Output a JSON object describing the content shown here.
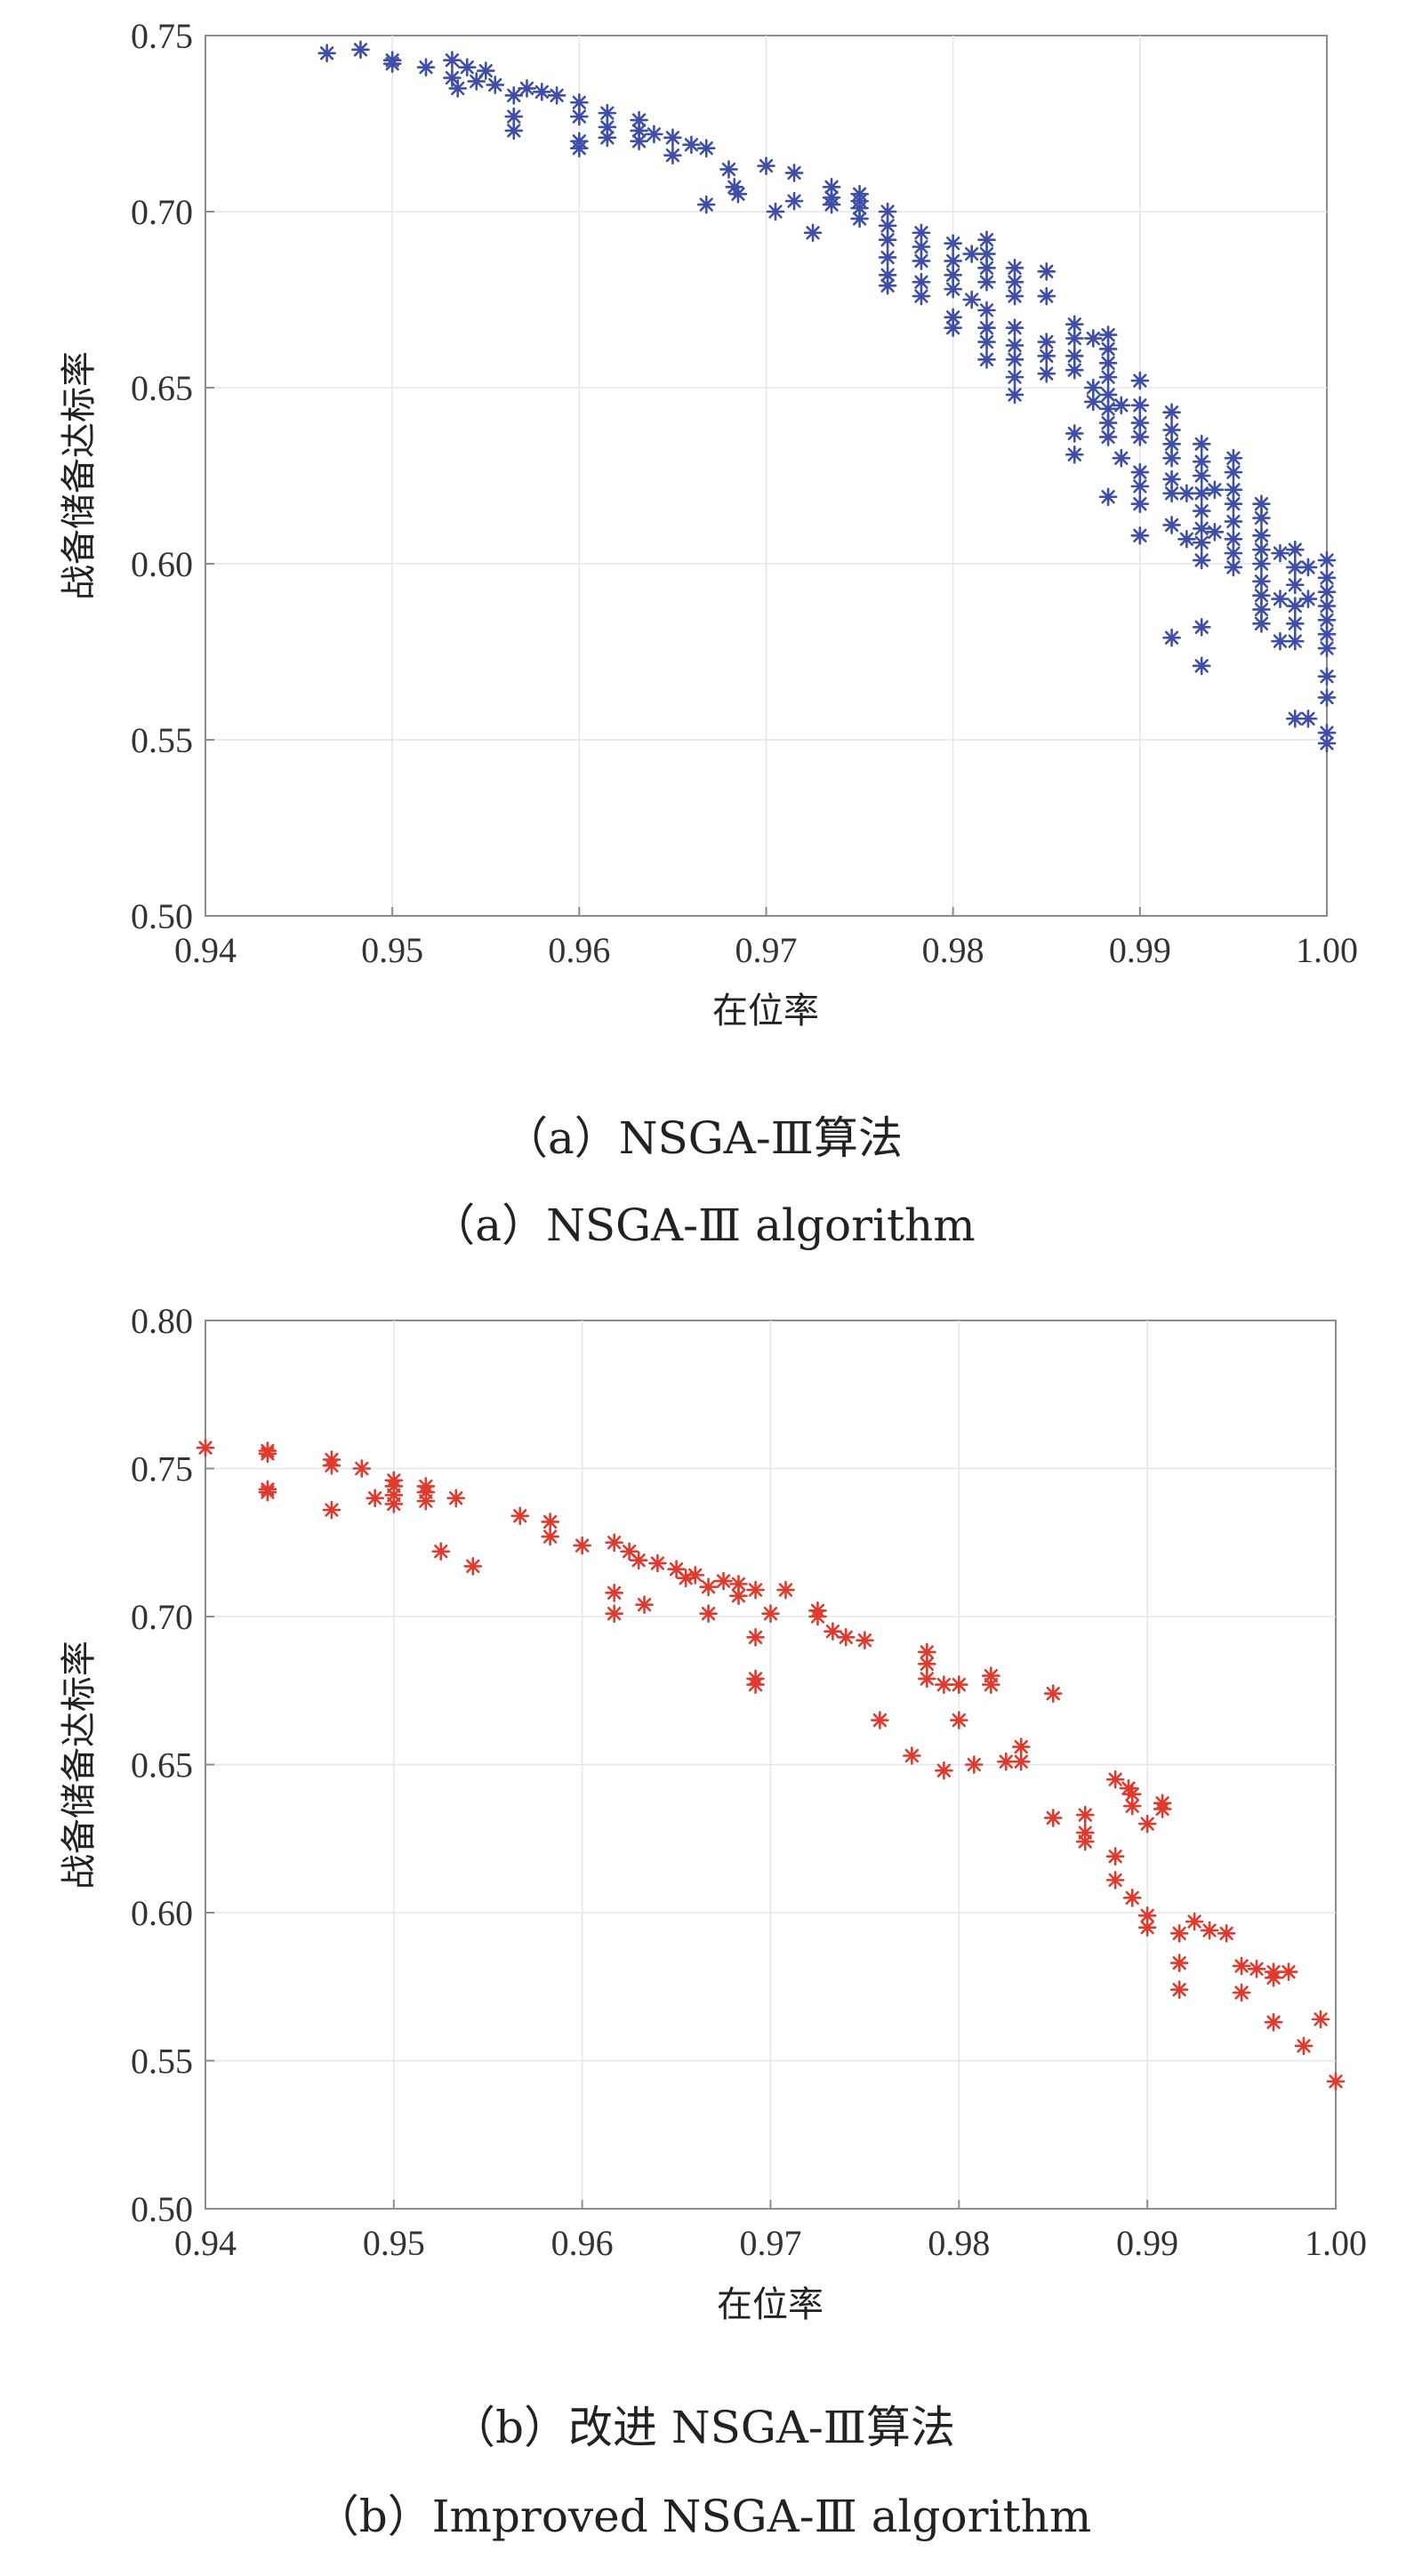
{
  "chart_data": [
    {
      "type": "scatter",
      "marker": "asterisk",
      "color": "#3f4fa8",
      "xlabel": "在位率",
      "ylabel": "战备储备达标率",
      "xlim": [
        0.94,
        1.0
      ],
      "ylim": [
        0.5,
        0.75
      ],
      "xticks": [
        "0.94",
        "0.95",
        "0.96",
        "0.97",
        "0.98",
        "0.99",
        "1.00"
      ],
      "yticks": [
        "0.50",
        "0.55",
        "0.60",
        "0.65",
        "0.70",
        "0.75"
      ],
      "caption_cn": "（a）NSGA-Ⅲ算法",
      "caption_en": "（a）NSGA-Ⅲ algorithm",
      "points": [
        [
          0.9465,
          0.745
        ],
        [
          0.9483,
          0.746
        ],
        [
          0.95,
          0.743
        ],
        [
          0.95,
          0.742
        ],
        [
          0.9518,
          0.741
        ],
        [
          0.9532,
          0.743
        ],
        [
          0.9532,
          0.738
        ],
        [
          0.9535,
          0.735
        ],
        [
          0.954,
          0.741
        ],
        [
          0.9545,
          0.737
        ],
        [
          0.955,
          0.74
        ],
        [
          0.9555,
          0.736
        ],
        [
          0.9565,
          0.733
        ],
        [
          0.9565,
          0.727
        ],
        [
          0.9565,
          0.723
        ],
        [
          0.9572,
          0.735
        ],
        [
          0.958,
          0.734
        ],
        [
          0.9588,
          0.733
        ],
        [
          0.96,
          0.731
        ],
        [
          0.96,
          0.727
        ],
        [
          0.96,
          0.72
        ],
        [
          0.96,
          0.718
        ],
        [
          0.9615,
          0.728
        ],
        [
          0.9615,
          0.724
        ],
        [
          0.9615,
          0.721
        ],
        [
          0.9632,
          0.726
        ],
        [
          0.9632,
          0.723
        ],
        [
          0.9632,
          0.72
        ],
        [
          0.964,
          0.722
        ],
        [
          0.965,
          0.721
        ],
        [
          0.965,
          0.716
        ],
        [
          0.966,
          0.719
        ],
        [
          0.9668,
          0.718
        ],
        [
          0.9668,
          0.702
        ],
        [
          0.968,
          0.712
        ],
        [
          0.9683,
          0.707
        ],
        [
          0.9685,
          0.705
        ],
        [
          0.97,
          0.713
        ],
        [
          0.9705,
          0.7
        ],
        [
          0.9715,
          0.711
        ],
        [
          0.9715,
          0.703
        ],
        [
          0.9725,
          0.694
        ],
        [
          0.9735,
          0.707
        ],
        [
          0.9735,
          0.704
        ],
        [
          0.9735,
          0.702
        ],
        [
          0.975,
          0.705
        ],
        [
          0.975,
          0.703
        ],
        [
          0.975,
          0.701
        ],
        [
          0.975,
          0.698
        ],
        [
          0.9765,
          0.7
        ],
        [
          0.9765,
          0.696
        ],
        [
          0.9765,
          0.692
        ],
        [
          0.9765,
          0.687
        ],
        [
          0.9765,
          0.682
        ],
        [
          0.9765,
          0.679
        ],
        [
          0.9783,
          0.694
        ],
        [
          0.9783,
          0.69
        ],
        [
          0.9783,
          0.686
        ],
        [
          0.9783,
          0.68
        ],
        [
          0.9783,
          0.676
        ],
        [
          0.98,
          0.691
        ],
        [
          0.98,
          0.686
        ],
        [
          0.98,
          0.682
        ],
        [
          0.98,
          0.678
        ],
        [
          0.98,
          0.67
        ],
        [
          0.98,
          0.667
        ],
        [
          0.981,
          0.688
        ],
        [
          0.981,
          0.675
        ],
        [
          0.9818,
          0.692
        ],
        [
          0.9818,
          0.688
        ],
        [
          0.9818,
          0.684
        ],
        [
          0.9818,
          0.68
        ],
        [
          0.9818,
          0.672
        ],
        [
          0.9818,
          0.667
        ],
        [
          0.9818,
          0.663
        ],
        [
          0.9818,
          0.658
        ],
        [
          0.9833,
          0.684
        ],
        [
          0.9833,
          0.68
        ],
        [
          0.9833,
          0.676
        ],
        [
          0.9833,
          0.667
        ],
        [
          0.9833,
          0.662
        ],
        [
          0.9833,
          0.658
        ],
        [
          0.9833,
          0.653
        ],
        [
          0.9833,
          0.648
        ],
        [
          0.985,
          0.683
        ],
        [
          0.985,
          0.676
        ],
        [
          0.985,
          0.663
        ],
        [
          0.985,
          0.659
        ],
        [
          0.985,
          0.654
        ],
        [
          0.9865,
          0.668
        ],
        [
          0.9865,
          0.664
        ],
        [
          0.9865,
          0.659
        ],
        [
          0.9865,
          0.655
        ],
        [
          0.9865,
          0.637
        ],
        [
          0.9865,
          0.631
        ],
        [
          0.9875,
          0.664
        ],
        [
          0.9875,
          0.65
        ],
        [
          0.9875,
          0.646
        ],
        [
          0.9883,
          0.665
        ],
        [
          0.9883,
          0.661
        ],
        [
          0.9883,
          0.657
        ],
        [
          0.9883,
          0.653
        ],
        [
          0.9883,
          0.648
        ],
        [
          0.9883,
          0.644
        ],
        [
          0.9883,
          0.64
        ],
        [
          0.9883,
          0.636
        ],
        [
          0.9883,
          0.619
        ],
        [
          0.989,
          0.645
        ],
        [
          0.989,
          0.63
        ],
        [
          0.99,
          0.652
        ],
        [
          0.99,
          0.645
        ],
        [
          0.99,
          0.64
        ],
        [
          0.99,
          0.636
        ],
        [
          0.99,
          0.626
        ],
        [
          0.99,
          0.622
        ],
        [
          0.99,
          0.617
        ],
        [
          0.99,
          0.608
        ],
        [
          0.9917,
          0.643
        ],
        [
          0.9917,
          0.638
        ],
        [
          0.9917,
          0.634
        ],
        [
          0.9917,
          0.63
        ],
        [
          0.9917,
          0.624
        ],
        [
          0.9917,
          0.62
        ],
        [
          0.9917,
          0.611
        ],
        [
          0.9917,
          0.579
        ],
        [
          0.9925,
          0.62
        ],
        [
          0.9925,
          0.607
        ],
        [
          0.9933,
          0.634
        ],
        [
          0.9933,
          0.629
        ],
        [
          0.9933,
          0.625
        ],
        [
          0.9933,
          0.62
        ],
        [
          0.9933,
          0.615
        ],
        [
          0.9933,
          0.61
        ],
        [
          0.9933,
          0.606
        ],
        [
          0.9933,
          0.601
        ],
        [
          0.9933,
          0.582
        ],
        [
          0.9933,
          0.571
        ],
        [
          0.994,
          0.621
        ],
        [
          0.994,
          0.609
        ],
        [
          0.995,
          0.63
        ],
        [
          0.995,
          0.626
        ],
        [
          0.995,
          0.621
        ],
        [
          0.995,
          0.617
        ],
        [
          0.995,
          0.612
        ],
        [
          0.995,
          0.607
        ],
        [
          0.995,
          0.603
        ],
        [
          0.995,
          0.599
        ],
        [
          0.9965,
          0.617
        ],
        [
          0.9965,
          0.613
        ],
        [
          0.9965,
          0.608
        ],
        [
          0.9965,
          0.604
        ],
        [
          0.9965,
          0.6
        ],
        [
          0.9965,
          0.595
        ],
        [
          0.9965,
          0.591
        ],
        [
          0.9965,
          0.587
        ],
        [
          0.9965,
          0.583
        ],
        [
          0.9975,
          0.603
        ],
        [
          0.9975,
          0.59
        ],
        [
          0.9975,
          0.578
        ],
        [
          0.9983,
          0.604
        ],
        [
          0.9983,
          0.599
        ],
        [
          0.9983,
          0.594
        ],
        [
          0.9983,
          0.588
        ],
        [
          0.9983,
          0.583
        ],
        [
          0.9983,
          0.578
        ],
        [
          0.9983,
          0.556
        ],
        [
          0.999,
          0.599
        ],
        [
          0.999,
          0.59
        ],
        [
          0.999,
          0.556
        ],
        [
          1.0,
          0.601
        ],
        [
          1.0,
          0.596
        ],
        [
          1.0,
          0.592
        ],
        [
          1.0,
          0.588
        ],
        [
          1.0,
          0.584
        ],
        [
          1.0,
          0.58
        ],
        [
          1.0,
          0.576
        ],
        [
          1.0,
          0.568
        ],
        [
          1.0,
          0.562
        ],
        [
          1.0,
          0.552
        ],
        [
          1.0,
          0.549
        ]
      ]
    },
    {
      "type": "scatter",
      "marker": "asterisk",
      "color": "#e03a2f",
      "xlabel": "在位率",
      "ylabel": "战备储备达标率",
      "xlim": [
        0.94,
        1.0
      ],
      "ylim": [
        0.5,
        0.8
      ],
      "xticks": [
        "0.94",
        "0.95",
        "0.96",
        "0.97",
        "0.98",
        "0.99",
        "1.00"
      ],
      "yticks": [
        "0.50",
        "0.55",
        "0.60",
        "0.65",
        "0.70",
        "0.75",
        "0.80"
      ],
      "caption_cn": "（b）改进 NSGA-Ⅲ算法",
      "caption_en": "（b）Improved NSGA-Ⅲ algorithm",
      "points": [
        [
          0.94,
          0.757
        ],
        [
          0.9433,
          0.756
        ],
        [
          0.9433,
          0.755
        ],
        [
          0.9433,
          0.743
        ],
        [
          0.9433,
          0.742
        ],
        [
          0.9467,
          0.753
        ],
        [
          0.9467,
          0.751
        ],
        [
          0.9467,
          0.736
        ],
        [
          0.9483,
          0.75
        ],
        [
          0.949,
          0.74
        ],
        [
          0.95,
          0.746
        ],
        [
          0.95,
          0.744
        ],
        [
          0.95,
          0.741
        ],
        [
          0.95,
          0.738
        ],
        [
          0.9517,
          0.744
        ],
        [
          0.9517,
          0.742
        ],
        [
          0.9517,
          0.739
        ],
        [
          0.9525,
          0.722
        ],
        [
          0.9533,
          0.74
        ],
        [
          0.9542,
          0.717
        ],
        [
          0.9567,
          0.734
        ],
        [
          0.9583,
          0.732
        ],
        [
          0.9583,
          0.727
        ],
        [
          0.96,
          0.724
        ],
        [
          0.9617,
          0.725
        ],
        [
          0.9617,
          0.708
        ],
        [
          0.9617,
          0.701
        ],
        [
          0.9625,
          0.722
        ],
        [
          0.963,
          0.719
        ],
        [
          0.9633,
          0.704
        ],
        [
          0.964,
          0.718
        ],
        [
          0.965,
          0.716
        ],
        [
          0.9655,
          0.713
        ],
        [
          0.966,
          0.714
        ],
        [
          0.9667,
          0.71
        ],
        [
          0.9667,
          0.701
        ],
        [
          0.9675,
          0.712
        ],
        [
          0.9683,
          0.711
        ],
        [
          0.9683,
          0.707
        ],
        [
          0.9692,
          0.709
        ],
        [
          0.9692,
          0.693
        ],
        [
          0.9692,
          0.679
        ],
        [
          0.9692,
          0.677
        ],
        [
          0.97,
          0.701
        ],
        [
          0.9708,
          0.709
        ],
        [
          0.9725,
          0.702
        ],
        [
          0.9725,
          0.7
        ],
        [
          0.9733,
          0.695
        ],
        [
          0.974,
          0.693
        ],
        [
          0.975,
          0.692
        ],
        [
          0.9758,
          0.665
        ],
        [
          0.9775,
          0.653
        ],
        [
          0.9783,
          0.688
        ],
        [
          0.9783,
          0.684
        ],
        [
          0.9783,
          0.679
        ],
        [
          0.9792,
          0.677
        ],
        [
          0.9792,
          0.648
        ],
        [
          0.98,
          0.677
        ],
        [
          0.98,
          0.665
        ],
        [
          0.9808,
          0.65
        ],
        [
          0.9817,
          0.68
        ],
        [
          0.9817,
          0.677
        ],
        [
          0.9825,
          0.651
        ],
        [
          0.9833,
          0.656
        ],
        [
          0.9833,
          0.651
        ],
        [
          0.985,
          0.674
        ],
        [
          0.985,
          0.632
        ],
        [
          0.9867,
          0.633
        ],
        [
          0.9867,
          0.627
        ],
        [
          0.9867,
          0.624
        ],
        [
          0.9883,
          0.645
        ],
        [
          0.9883,
          0.619
        ],
        [
          0.9883,
          0.611
        ],
        [
          0.989,
          0.642
        ],
        [
          0.9892,
          0.64
        ],
        [
          0.9892,
          0.636
        ],
        [
          0.9892,
          0.605
        ],
        [
          0.99,
          0.63
        ],
        [
          0.99,
          0.599
        ],
        [
          0.99,
          0.595
        ],
        [
          0.9908,
          0.637
        ],
        [
          0.9908,
          0.635
        ],
        [
          0.9917,
          0.593
        ],
        [
          0.9917,
          0.583
        ],
        [
          0.9917,
          0.574
        ],
        [
          0.9925,
          0.597
        ],
        [
          0.9933,
          0.594
        ],
        [
          0.9942,
          0.593
        ],
        [
          0.995,
          0.582
        ],
        [
          0.995,
          0.573
        ],
        [
          0.9958,
          0.581
        ],
        [
          0.9967,
          0.58
        ],
        [
          0.9967,
          0.578
        ],
        [
          0.9967,
          0.563
        ],
        [
          0.9975,
          0.58
        ],
        [
          0.9983,
          0.555
        ],
        [
          0.9992,
          0.564
        ],
        [
          1.0,
          0.543
        ]
      ]
    }
  ]
}
